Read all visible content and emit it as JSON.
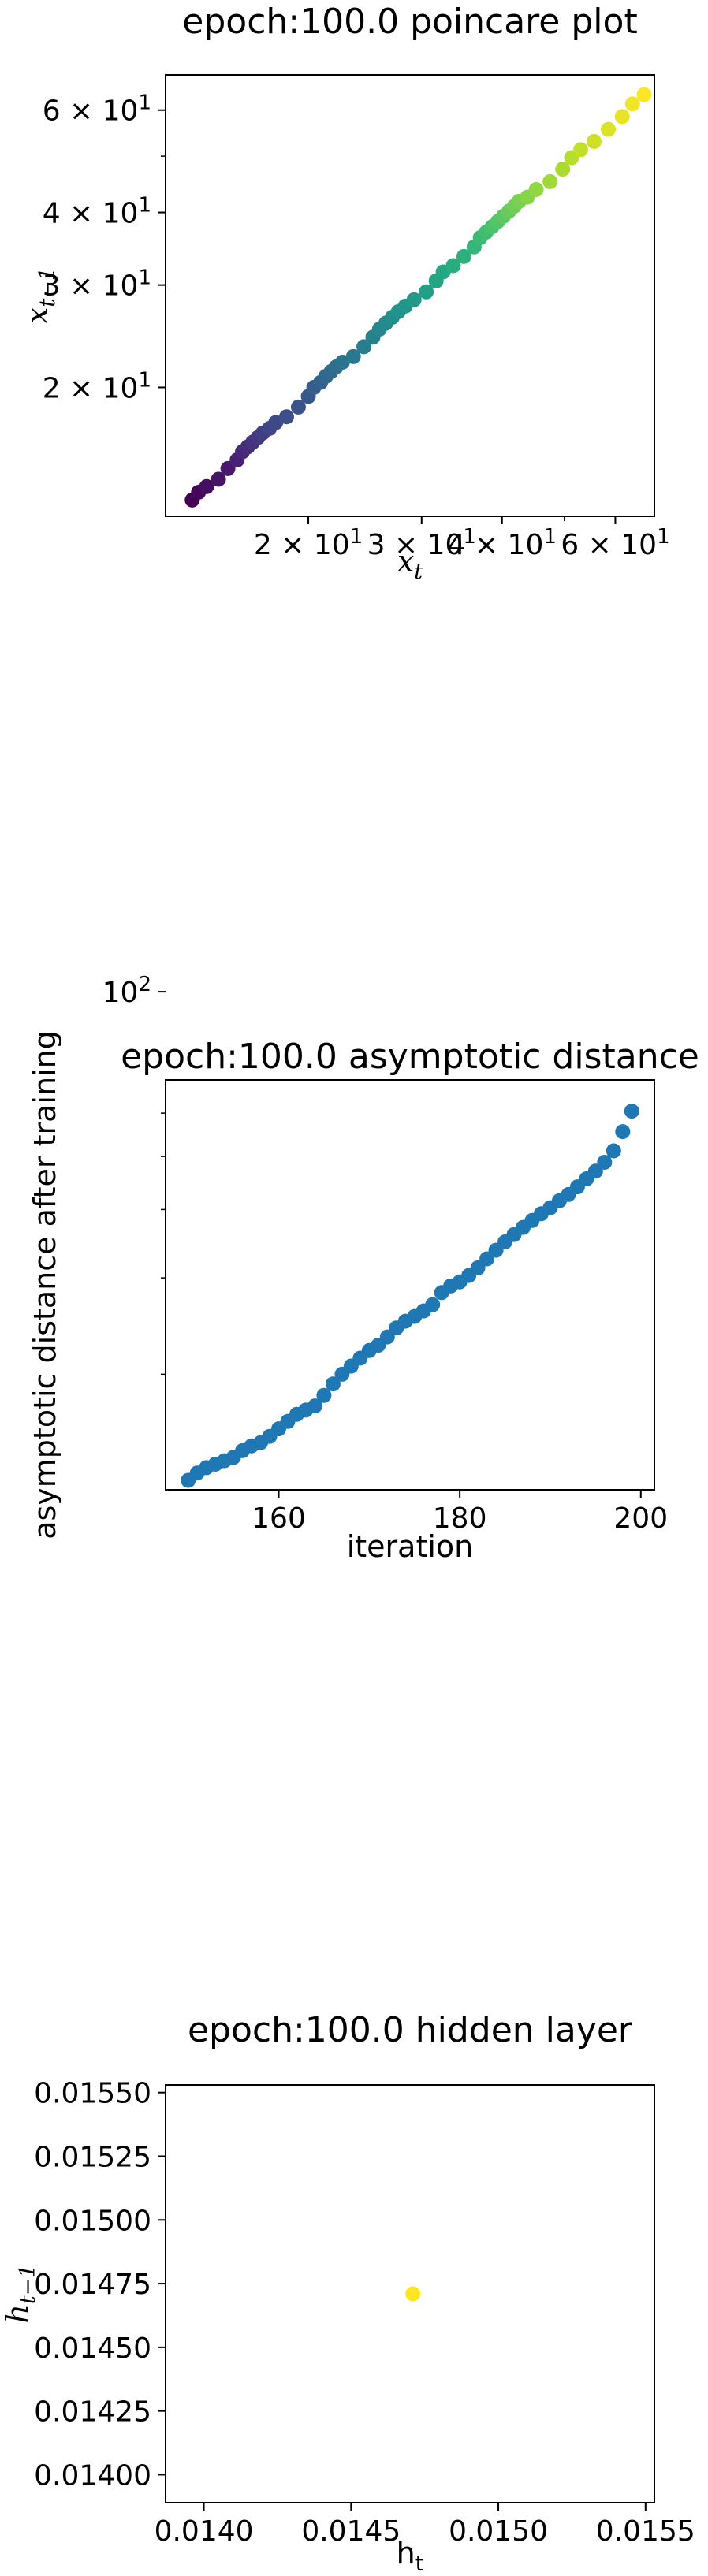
{
  "chart_data": [
    {
      "type": "scatter",
      "title": "epoch:100.0 poincare plot",
      "xlabel": "x_t",
      "ylabel": "x_{t-1}",
      "xscale": "log",
      "yscale": "log",
      "xlim": [
        12.0,
        69.0
      ],
      "ylim": [
        12.0,
        69.0
      ],
      "xticks": [
        {
          "value": 20,
          "label": "2 × 10^1"
        },
        {
          "value": 30,
          "label": "3 × 10^1"
        },
        {
          "value": 40,
          "label": "4 × 10^1"
        },
        {
          "value": 60,
          "label": "6 × 10^1"
        }
      ],
      "yticks": [
        {
          "value": 20,
          "label": "2 × 10^1"
        },
        {
          "value": 30,
          "label": "3 × 10^1"
        },
        {
          "value": 40,
          "label": "4 × 10^1"
        },
        {
          "value": 60,
          "label": "6 × 10^1"
        }
      ],
      "colormap": "viridis",
      "grid": false,
      "x": [
        13.2,
        13.5,
        13.9,
        14.5,
        15.0,
        15.5,
        15.8,
        16.1,
        16.4,
        16.7,
        17.0,
        17.4,
        17.8,
        18.5,
        19.3,
        20.0,
        20.4,
        20.9,
        21.3,
        21.7,
        22.1,
        22.6,
        23.5,
        24.4,
        25.2,
        25.8,
        26.4,
        27.0,
        27.6,
        28.3,
        29.2,
        30.5,
        31.6,
        32.4,
        33.6,
        34.9,
        36.2,
        37.0,
        37.8,
        38.6,
        39.4,
        40.2,
        41.0,
        41.8,
        42.5,
        43.8,
        45.2,
        47.5,
        49.7,
        51.3,
        53.0,
        55.6,
        58.5,
        61.5,
        63.8,
        66.5
      ],
      "y": [
        12.8,
        13.2,
        13.5,
        13.9,
        14.5,
        15.0,
        15.5,
        15.8,
        16.1,
        16.4,
        16.7,
        17.0,
        17.4,
        17.8,
        18.5,
        19.3,
        20.0,
        20.4,
        20.9,
        21.3,
        21.7,
        22.1,
        22.6,
        23.5,
        24.4,
        25.2,
        25.8,
        26.4,
        27.0,
        27.6,
        28.3,
        29.2,
        30.5,
        31.6,
        32.4,
        33.6,
        34.9,
        36.2,
        37.0,
        37.8,
        38.6,
        39.4,
        40.2,
        41.0,
        41.8,
        42.5,
        43.8,
        45.2,
        47.5,
        49.7,
        51.3,
        53.0,
        55.6,
        58.5,
        61.5,
        63.8
      ]
    },
    {
      "type": "scatter",
      "title": "epoch:100.0 asymptotic distance",
      "xlabel": "iteration",
      "ylabel": "asymptotic distance after training",
      "yscale": "log",
      "xlim": [
        147.5,
        201.5
      ],
      "ylim": [
        12.3,
        69.0
      ],
      "xticks": [
        {
          "value": 160,
          "label": "160"
        },
        {
          "value": 180,
          "label": "180"
        },
        {
          "value": 200,
          "label": "200"
        }
      ],
      "yticks": [
        {
          "value": 100,
          "label": "10^2"
        }
      ],
      "color": "#1f77b4",
      "grid": false,
      "x": [
        150,
        151,
        152,
        153,
        154,
        155,
        156,
        157,
        158,
        159,
        160,
        161,
        162,
        163,
        164,
        165,
        166,
        167,
        168,
        169,
        170,
        171,
        172,
        173,
        174,
        175,
        176,
        177,
        178,
        179,
        180,
        181,
        182,
        183,
        184,
        185,
        186,
        187,
        188,
        189,
        190,
        191,
        192,
        193,
        194,
        195,
        196,
        197,
        198,
        199
      ],
      "y": [
        12.8,
        13.2,
        13.5,
        13.7,
        13.9,
        14.1,
        14.5,
        14.8,
        15.0,
        15.4,
        15.9,
        16.4,
        16.9,
        17.2,
        17.5,
        18.3,
        19.2,
        20.0,
        20.7,
        21.4,
        22.1,
        22.6,
        23.4,
        24.3,
        25.0,
        25.5,
        26.1,
        26.8,
        28.2,
        29.0,
        29.5,
        30.3,
        31.3,
        32.5,
        33.7,
        34.9,
        36.0,
        37.1,
        38.2,
        39.3,
        40.3,
        41.5,
        42.6,
        44.0,
        45.5,
        47.0,
        48.8,
        51.2,
        55.5,
        60.5
      ]
    },
    {
      "type": "scatter",
      "title": "epoch:100.0 hidden layer",
      "xlabel": "h_t",
      "ylabel": "h_{t-1}",
      "xlim": [
        0.01387,
        0.01553
      ],
      "ylim": [
        0.01389,
        0.01553
      ],
      "xticks": [
        {
          "value": 0.014,
          "label": "0.0140"
        },
        {
          "value": 0.0145,
          "label": "0.0145"
        },
        {
          "value": 0.015,
          "label": "0.0150"
        },
        {
          "value": 0.0155,
          "label": "0.0155"
        }
      ],
      "yticks": [
        {
          "value": 0.014,
          "label": "0.01400"
        },
        {
          "value": 0.01425,
          "label": "0.01425"
        },
        {
          "value": 0.0145,
          "label": "0.01450"
        },
        {
          "value": 0.01475,
          "label": "0.01475"
        },
        {
          "value": 0.015,
          "label": "0.01500"
        },
        {
          "value": 0.01525,
          "label": "0.01525"
        },
        {
          "value": 0.0155,
          "label": "0.01550"
        }
      ],
      "color": "#fde725",
      "grid": false,
      "x": [
        0.01471
      ],
      "y": [
        0.01471
      ]
    }
  ]
}
